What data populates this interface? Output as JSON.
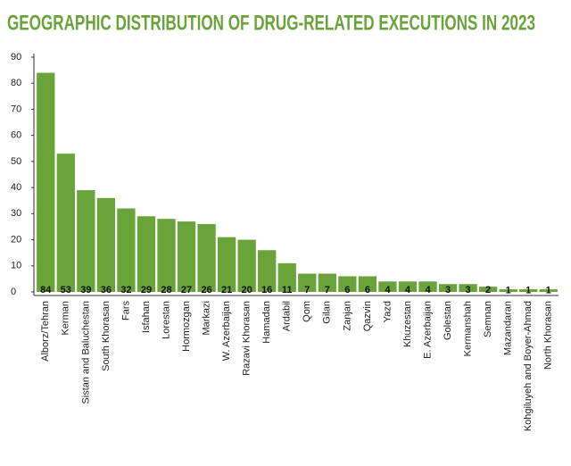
{
  "chart_data": {
    "type": "bar",
    "title": "GEOGRAPHIC DISTRIBUTION OF DRUG-RELATED EXECUTIONS IN 2023",
    "categories": [
      "Alborz/Tehran",
      "Kerman",
      "Sistan and Baluchestan",
      "South Khorasan",
      "Fars",
      "Isfahan",
      "Lorestan",
      "Hormozgan",
      "Markazi",
      "W. Azerbaijan",
      "Razavi Khorasan",
      "Hamadan",
      "Ardabil",
      "Qom",
      "Gilan",
      "Zanjan",
      "Qazvin",
      "Yazd",
      "Khuzestan",
      "E. Azerbaijan",
      "Golestan",
      "Kermanshah",
      "Semnan",
      "Mazandaran",
      "Kohgiluyeh and Boyer-Ahmad",
      "North Khorasan"
    ],
    "values": [
      84,
      53,
      39,
      36,
      32,
      29,
      28,
      27,
      26,
      21,
      20,
      16,
      11,
      7,
      7,
      6,
      6,
      4,
      4,
      4,
      3,
      3,
      2,
      1,
      1,
      1
    ],
    "color": "#6aa33a",
    "ylim": [
      0,
      90
    ],
    "yticks": [
      0,
      10,
      20,
      30,
      40,
      50,
      60,
      70,
      80,
      90
    ],
    "grid": false
  }
}
